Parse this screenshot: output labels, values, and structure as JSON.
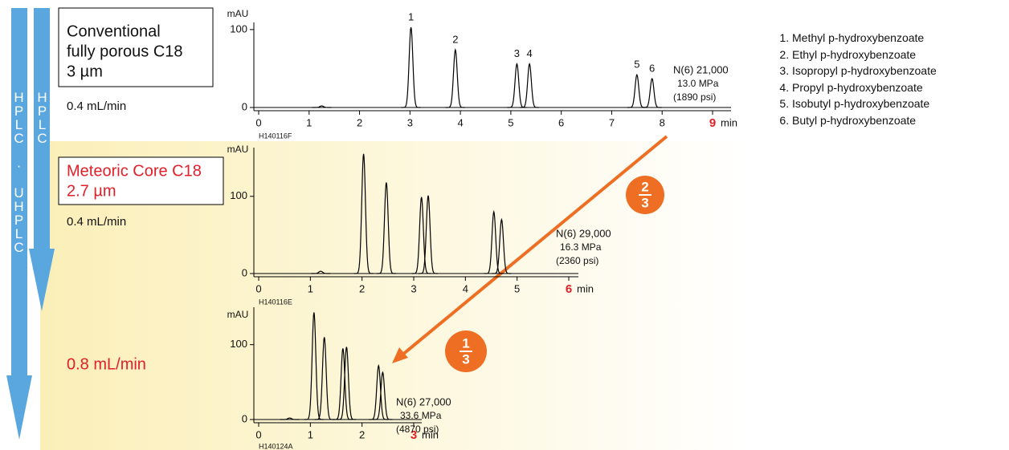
{
  "side_labels": [
    "HPLC · UHPLC",
    "HPLC"
  ],
  "compounds": [
    "Methyl p-hydroxybenzoate",
    "Ethyl p-hydroxybenzoate",
    "Isopropyl p-hydroxybenzoate",
    "Propyl p-hydroxybenzoate",
    "Isobutyl p-hydroxybenzoate",
    "Butyl p-hydroxybenzoate"
  ],
  "speedups": [
    {
      "numerator": 2,
      "denominator": 3
    },
    {
      "numerator": 1,
      "denominator": 3
    }
  ],
  "chart_data": [
    {
      "type": "chromatogram",
      "x": [
        1.25,
        3.02,
        3.9,
        5.12,
        5.37,
        7.5,
        7.8
      ],
      "values": [
        2,
        103,
        74,
        56,
        56,
        42,
        37
      ],
      "peak_labels": [
        null,
        "1",
        "2",
        "3",
        "4",
        "5",
        "6"
      ],
      "xlim": [
        0,
        9
      ],
      "xticks": [
        0,
        1,
        2,
        3,
        4,
        5,
        6,
        7,
        8,
        9
      ],
      "ylim": [
        0,
        105
      ],
      "yticks": [
        0,
        100
      ],
      "ylabel": "mAU",
      "xlabel": "min",
      "line_color": "#000000",
      "last_tick_color": "#e0202a",
      "column": [
        "Conventional",
        "fully porous C18",
        "3 µm"
      ],
      "column_color": "#111111",
      "flow_rate": "0.4 mL/min",
      "flow_color": "#111111",
      "annotations": [
        "N(6) 21,000",
        "13.0 MPa",
        "(1890 psi)"
      ],
      "code": "H140116F"
    },
    {
      "type": "chromatogram",
      "x": [
        1.2,
        2.03,
        2.47,
        3.15,
        3.28,
        4.55,
        4.7
      ],
      "values": [
        3,
        155,
        118,
        99,
        101,
        80,
        70
      ],
      "xlim": [
        0,
        6
      ],
      "xticks": [
        0,
        1,
        2,
        3,
        4,
        5,
        6
      ],
      "ylim": [
        0,
        160
      ],
      "yticks": [
        0,
        100
      ],
      "ylabel": "mAU",
      "xlabel": "min",
      "line_color": "#000000",
      "last_tick_color": "#e0202a",
      "column": [
        "Meteoric Core C18",
        "2.7 µm"
      ],
      "column_color": "#e0202a",
      "flow_rate": "0.4 mL/min",
      "flow_color": "#111111",
      "annotations": [
        "N(6) 29,000",
        "16.3 MPa",
        "(2360 psi)"
      ],
      "code": "H140116E"
    },
    {
      "type": "chromatogram",
      "x": [
        0.6,
        1.07,
        1.27,
        1.63,
        1.7,
        2.32,
        2.4
      ],
      "values": [
        2,
        143,
        110,
        95,
        97,
        72,
        63
      ],
      "xlim": [
        0,
        3
      ],
      "xticks": [
        0,
        1,
        2,
        3
      ],
      "ylim": [
        0,
        150
      ],
      "yticks": [
        0,
        100
      ],
      "ylabel": "mAU",
      "xlabel": "min",
      "line_color": "#000000",
      "last_tick_color": "#e0202a",
      "flow_rate": "0.8 mL/min",
      "flow_color": "#e0202a",
      "annotations": [
        "N(6) 27,000",
        "33.6 MPa",
        "(4870 psi)"
      ],
      "code": "H140124A"
    }
  ]
}
